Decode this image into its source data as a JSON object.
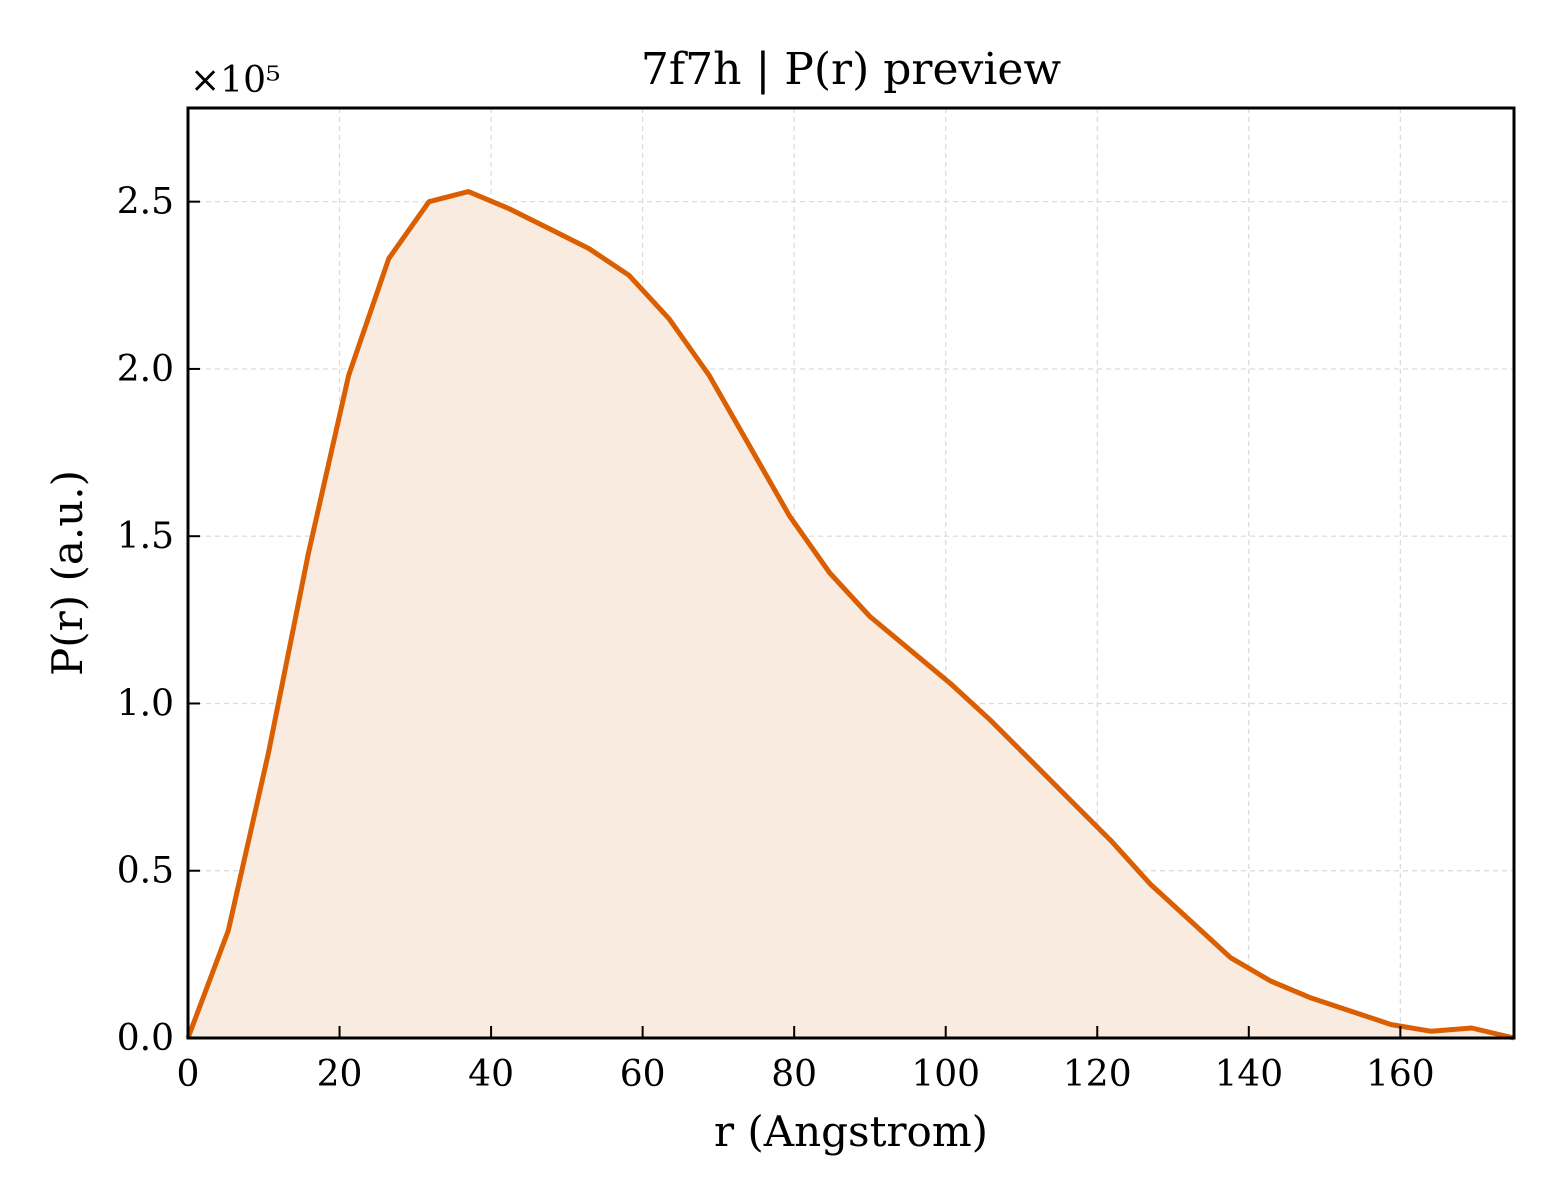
{
  "chart_data": {
    "type": "area",
    "title": "7f7h | P(r) preview",
    "xlabel": "r (Angstrom)",
    "ylabel": "P(r) (a.u.)",
    "y_multiplier_label": "×10⁵",
    "xlim": [
      0,
      175
    ],
    "ylim": [
      0,
      2.78
    ],
    "xticks": [
      0,
      20,
      40,
      60,
      80,
      100,
      120,
      140,
      160
    ],
    "xtick_labels": [
      "0",
      "20",
      "40",
      "60",
      "80",
      "100",
      "120",
      "140",
      "160"
    ],
    "yticks": [
      0,
      0.5,
      1.0,
      1.5,
      2.0,
      2.5
    ],
    "ytick_labels": [
      "0.0",
      "0.5",
      "1.0",
      "1.5",
      "2.0",
      "2.5"
    ],
    "grid": true,
    "line_color": "#d95f02",
    "fill_color": "#f9ebe0",
    "series": [
      {
        "x": [
          0,
          5.3,
          10.6,
          15.9,
          21.2,
          26.5,
          31.8,
          37.0,
          42.3,
          47.6,
          52.9,
          58.2,
          63.5,
          68.8,
          74.1,
          79.4,
          84.7,
          90.0,
          95.3,
          100.6,
          105.9,
          111.2,
          116.5,
          121.8,
          127.0,
          132.3,
          137.6,
          142.9,
          148.2,
          153.5,
          158.8,
          164.1,
          169.4,
          175.0
        ],
        "y": [
          0.0,
          0.32,
          0.85,
          1.45,
          1.98,
          2.33,
          2.5,
          2.53,
          2.48,
          2.42,
          2.36,
          2.28,
          2.15,
          1.98,
          1.77,
          1.56,
          1.39,
          1.26,
          1.16,
          1.06,
          0.95,
          0.83,
          0.71,
          0.59,
          0.46,
          0.35,
          0.24,
          0.17,
          0.12,
          0.08,
          0.04,
          0.02,
          0.03,
          0.0
        ]
      }
    ]
  }
}
